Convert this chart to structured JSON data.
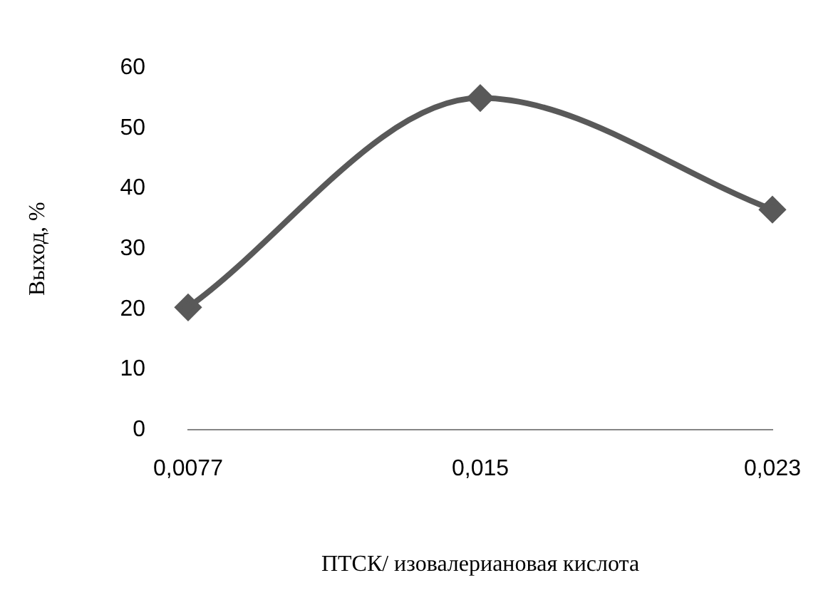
{
  "chart_data": {
    "type": "line",
    "xlabel": "ПТСК/ изовалериановая кислота",
    "ylabel": "Выход, %",
    "categories": [
      "0,0077",
      "0,015",
      "0,023"
    ],
    "series": [
      {
        "color": "#595959",
        "values": [
          20.3,
          55,
          36.5
        ]
      }
    ],
    "ylim": [
      0,
      60
    ],
    "yticks": [
      0,
      10,
      20,
      30,
      40,
      50,
      60
    ],
    "grid": false,
    "legend": false,
    "marker": "diamond",
    "line_style": "solid"
  }
}
